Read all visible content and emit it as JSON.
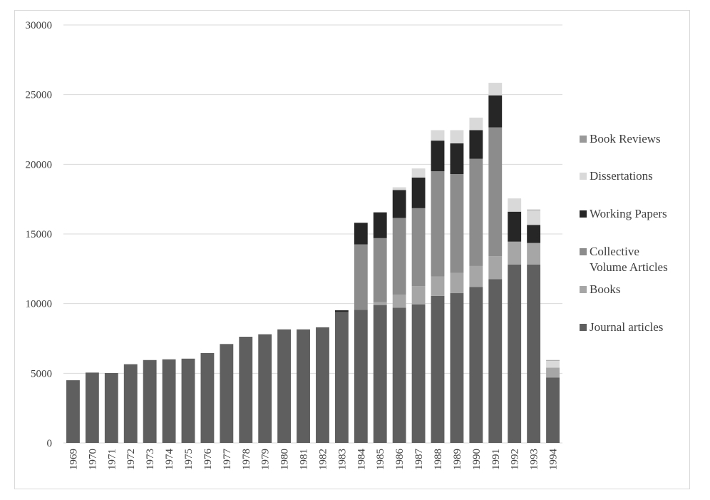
{
  "chart_data": {
    "type": "bar",
    "stacked": true,
    "categories": [
      "1969",
      "1970",
      "1971",
      "1972",
      "1973",
      "1974",
      "1975",
      "1976",
      "1977",
      "1978",
      "1979",
      "1980",
      "1981",
      "1982",
      "1983",
      "1984",
      "1985",
      "1986",
      "1987",
      "1988",
      "1989",
      "1990",
      "1991",
      "1992",
      "1993",
      "1994"
    ],
    "series": [
      {
        "name": "Journal articles",
        "color": "#5f5f5f",
        "values": [
          4500,
          5050,
          5020,
          5650,
          5950,
          6000,
          6050,
          6450,
          7100,
          7550,
          7800,
          8150,
          8150,
          8300,
          9400,
          9550,
          9900,
          9700,
          9950,
          10550,
          10750,
          11200,
          11750,
          12800,
          12800,
          4700
        ]
      },
      {
        "name": "Books",
        "color": "#a6a6a6",
        "values": [
          0,
          0,
          0,
          0,
          0,
          0,
          0,
          0,
          0,
          0,
          0,
          0,
          0,
          0,
          0,
          0,
          200,
          950,
          1300,
          1400,
          1450,
          1500,
          1650,
          1650,
          1550,
          700
        ]
      },
      {
        "name": "Collective Volume Articles",
        "color": "#8c8c8c",
        "values": [
          0,
          0,
          0,
          0,
          0,
          0,
          0,
          0,
          0,
          0,
          0,
          0,
          0,
          0,
          0,
          4700,
          4600,
          5500,
          5600,
          7550,
          7100,
          7700,
          9250,
          0,
          0,
          0
        ]
      },
      {
        "name": "Working Papers",
        "color": "#262626",
        "values": [
          0,
          0,
          0,
          0,
          0,
          0,
          0,
          0,
          0,
          50,
          0,
          0,
          0,
          0,
          120,
          1550,
          1850,
          2000,
          2200,
          2200,
          2200,
          2050,
          2300,
          2150,
          1300,
          0
        ]
      },
      {
        "name": "Dissertations",
        "color": "#d9d9d9",
        "values": [
          0,
          0,
          0,
          0,
          0,
          0,
          0,
          0,
          0,
          0,
          0,
          0,
          0,
          0,
          0,
          0,
          0,
          200,
          650,
          750,
          950,
          900,
          900,
          950,
          1050,
          500
        ]
      },
      {
        "name": "Book Reviews",
        "color": "#999999",
        "values": [
          0,
          0,
          0,
          0,
          0,
          0,
          0,
          0,
          0,
          0,
          0,
          0,
          0,
          0,
          0,
          0,
          0,
          0,
          0,
          0,
          0,
          0,
          0,
          0,
          50,
          50
        ]
      }
    ],
    "legend_order": [
      "Book Reviews",
      "Dissertations",
      "Working Papers",
      "Collective Volume Articles",
      "Books",
      "Journal articles"
    ],
    "legend_position": "right",
    "y_ticks": [
      "0",
      "5000",
      "10000",
      "15000",
      "20000",
      "25000",
      "30000"
    ],
    "ylim": [
      0,
      30000
    ],
    "grid": true,
    "title": "",
    "xlabel": "",
    "ylabel": ""
  }
}
